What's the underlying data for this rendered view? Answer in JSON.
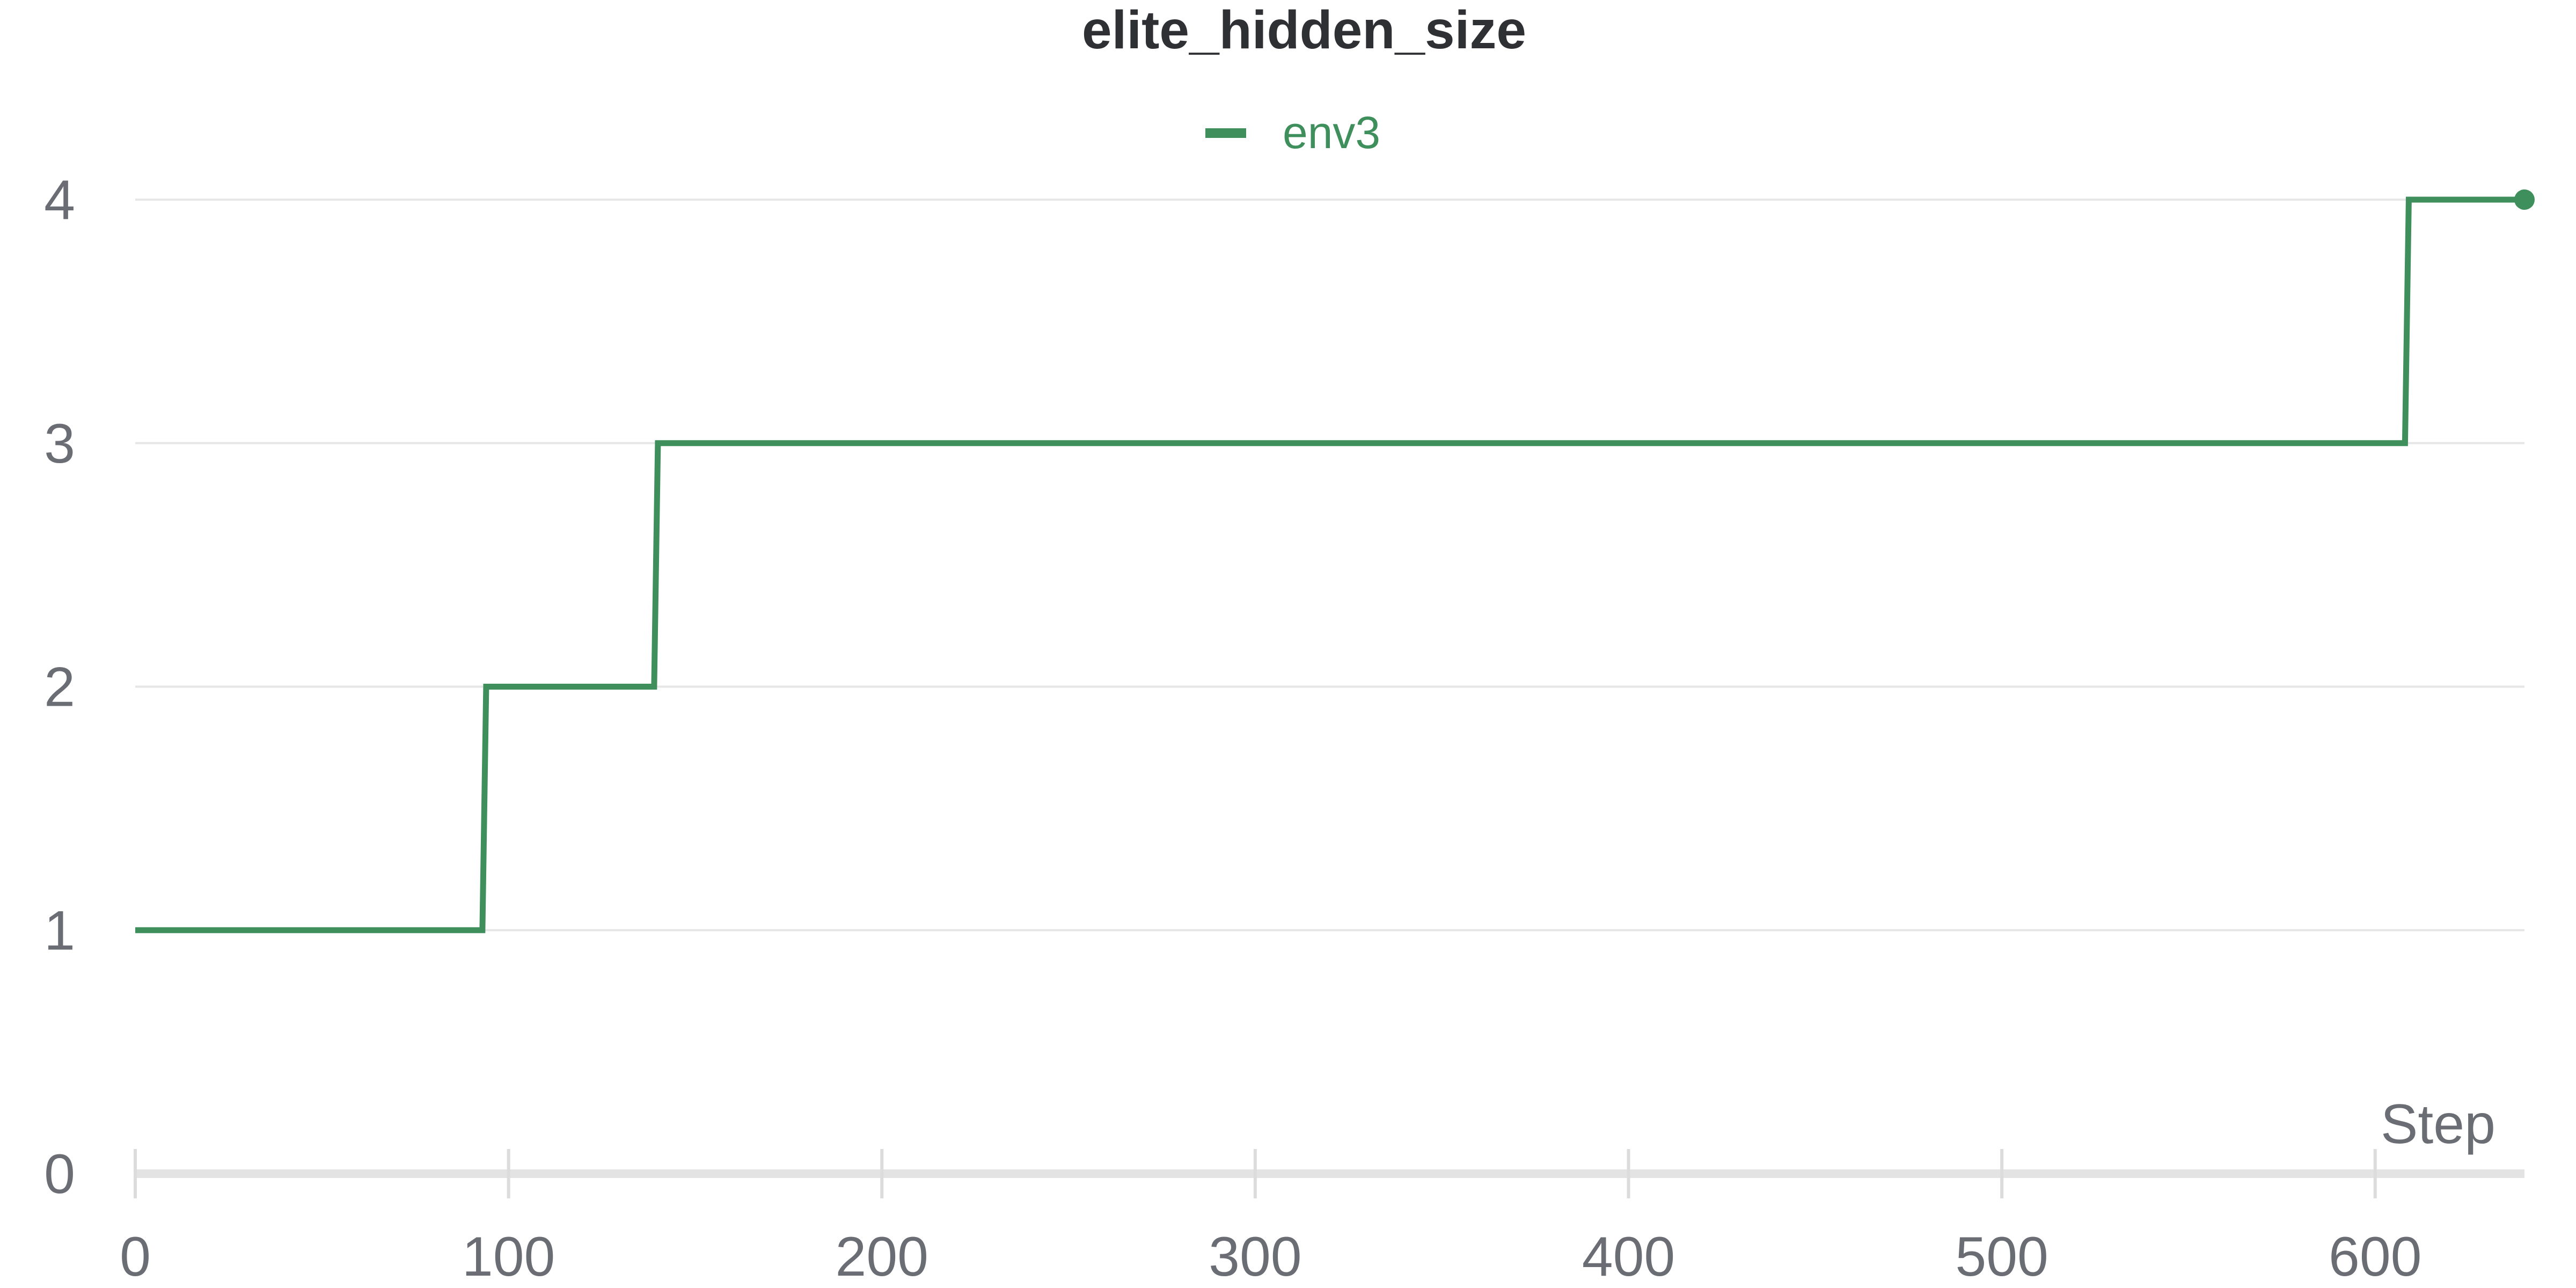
{
  "chart_data": {
    "type": "line",
    "title": "elite_hidden_size",
    "xlabel": "Step",
    "ylabel": "",
    "xlim": [
      0,
      640
    ],
    "ylim": [
      0,
      4
    ],
    "x_ticks": [
      "0",
      "100",
      "200",
      "300",
      "400",
      "500",
      "600"
    ],
    "y_ticks": [
      "0",
      "1",
      "2",
      "3",
      "4"
    ],
    "grid": true,
    "legend_position": "top-center",
    "series": [
      {
        "name": "env3",
        "color": "#3f8f5c",
        "step": true,
        "points": [
          {
            "x": 0,
            "y": 1
          },
          {
            "x": 93,
            "y": 1
          },
          {
            "x": 94,
            "y": 2
          },
          {
            "x": 139,
            "y": 2
          },
          {
            "x": 140,
            "y": 3
          },
          {
            "x": 608,
            "y": 3
          },
          {
            "x": 609,
            "y": 4
          },
          {
            "x": 640,
            "y": 4
          }
        ]
      }
    ]
  }
}
